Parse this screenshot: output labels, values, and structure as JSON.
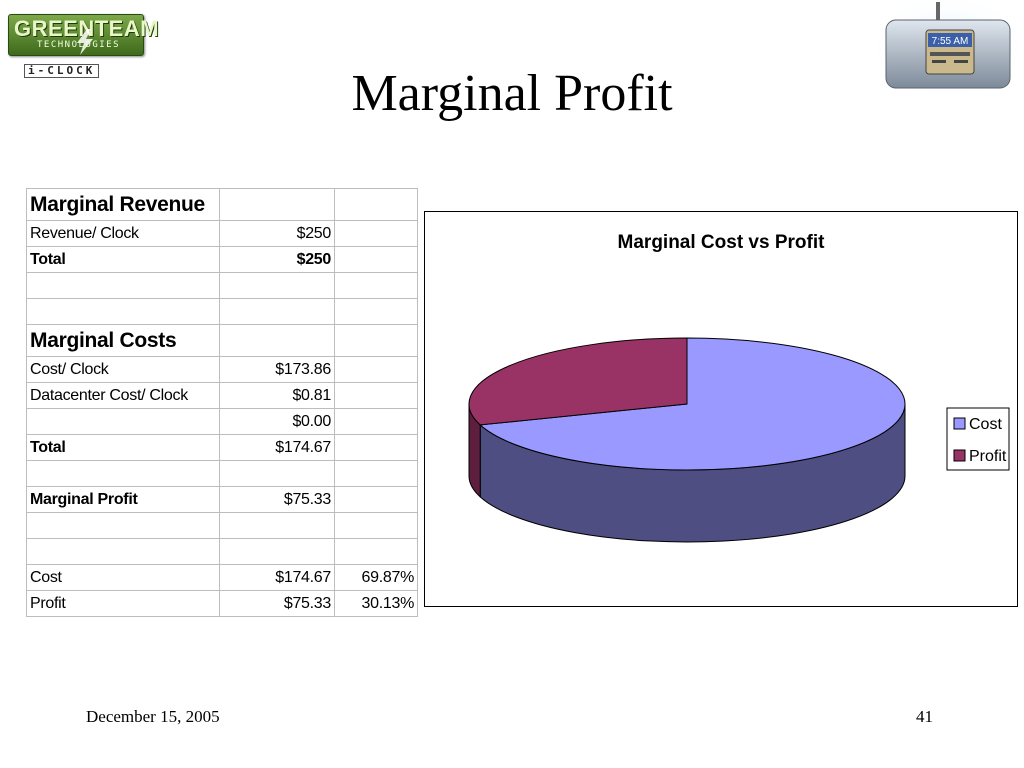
{
  "slide": {
    "title": "Marginal Profit",
    "date": "December 15, 2005",
    "page_number": "41"
  },
  "logo": {
    "main_text": "GREENTEAM",
    "sub_text": "TECHNOLOGIES",
    "product_text": "i-CLOCK"
  },
  "device": {
    "clock_time": "7:55 AM",
    "icon": "alarm-clock-device-icon"
  },
  "table": {
    "rows": [
      {
        "label": "Marginal Revenue",
        "value": "",
        "pct": "",
        "style": "header"
      },
      {
        "label": "Revenue/ Clock",
        "value": "$250",
        "pct": "",
        "style": "normal"
      },
      {
        "label": "Total",
        "value": "$250",
        "pct": "",
        "style": "bold"
      },
      {
        "label": "",
        "value": "",
        "pct": "",
        "style": "normal"
      },
      {
        "label": "",
        "value": "",
        "pct": "",
        "style": "normal"
      },
      {
        "label": "Marginal Costs",
        "value": "",
        "pct": "",
        "style": "header"
      },
      {
        "label": "Cost/ Clock",
        "value": "$173.86",
        "pct": "",
        "style": "normal"
      },
      {
        "label": "Datacenter Cost/ Clock",
        "value": "$0.81",
        "pct": "",
        "style": "normal"
      },
      {
        "label": "",
        "value": "$0.00",
        "pct": "",
        "style": "normal"
      },
      {
        "label": "Total",
        "value": "$174.67",
        "pct": "",
        "style": "bold-label"
      },
      {
        "label": "",
        "value": "",
        "pct": "",
        "style": "normal"
      },
      {
        "label": "Marginal Profit",
        "value": "$75.33",
        "pct": "",
        "style": "bold-label"
      },
      {
        "label": "",
        "value": "",
        "pct": "",
        "style": "normal"
      },
      {
        "label": "",
        "value": "",
        "pct": "",
        "style": "normal"
      },
      {
        "label": "Cost",
        "value": "$174.67",
        "pct": "69.87%",
        "style": "normal"
      },
      {
        "label": "Profit",
        "value": "$75.33",
        "pct": "30.13%",
        "style": "normal"
      }
    ]
  },
  "chart_data": {
    "type": "pie",
    "title": "Marginal Cost vs Profit",
    "categories": [
      "Cost",
      "Profit"
    ],
    "values": [
      69.87,
      30.13
    ],
    "colors": [
      "#9999ff",
      "#993366"
    ],
    "side_colors": [
      "#4e4e82",
      "#5e1f3e"
    ],
    "legend_position": "right",
    "three_d": true
  }
}
